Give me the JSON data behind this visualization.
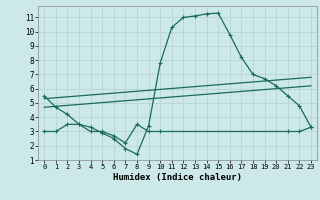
{
  "title": "",
  "xlabel": "Humidex (Indice chaleur)",
  "ylabel": "",
  "bg_color": "#cce8e8",
  "grid_color": "#b8d4d4",
  "line_color": "#1a6b5a",
  "xlim": [
    -0.5,
    23.5
  ],
  "ylim": [
    1,
    11.8
  ],
  "xticks": [
    0,
    1,
    2,
    3,
    4,
    5,
    6,
    7,
    8,
    9,
    10,
    11,
    12,
    13,
    14,
    15,
    16,
    17,
    18,
    19,
    20,
    21,
    22,
    23
  ],
  "yticks": [
    1,
    2,
    3,
    4,
    5,
    6,
    7,
    8,
    9,
    10,
    11
  ],
  "curve1_x": [
    0,
    1,
    2,
    3,
    4,
    5,
    6,
    7,
    8,
    9,
    10,
    11,
    12,
    13,
    14,
    15,
    16,
    17,
    18,
    19,
    20,
    21,
    22,
    23
  ],
  "curve1_y": [
    5.5,
    4.7,
    4.2,
    3.5,
    3.3,
    2.9,
    2.5,
    1.8,
    1.4,
    3.4,
    7.8,
    10.3,
    11.0,
    11.1,
    11.25,
    11.3,
    9.8,
    8.2,
    7.0,
    6.7,
    6.2,
    5.5,
    4.8,
    3.3
  ],
  "curve2_x": [
    0,
    23
  ],
  "curve2_y": [
    5.3,
    6.8
  ],
  "curve3_x": [
    0,
    23
  ],
  "curve3_y": [
    4.7,
    6.2
  ],
  "curve4_x": [
    0,
    1,
    2,
    3,
    4,
    5,
    6,
    7,
    8,
    9,
    10,
    21,
    22,
    23
  ],
  "curve4_y": [
    3.0,
    3.0,
    3.5,
    3.5,
    3.0,
    3.0,
    2.7,
    2.2,
    3.5,
    3.0,
    3.0,
    3.0,
    3.0,
    3.3
  ]
}
